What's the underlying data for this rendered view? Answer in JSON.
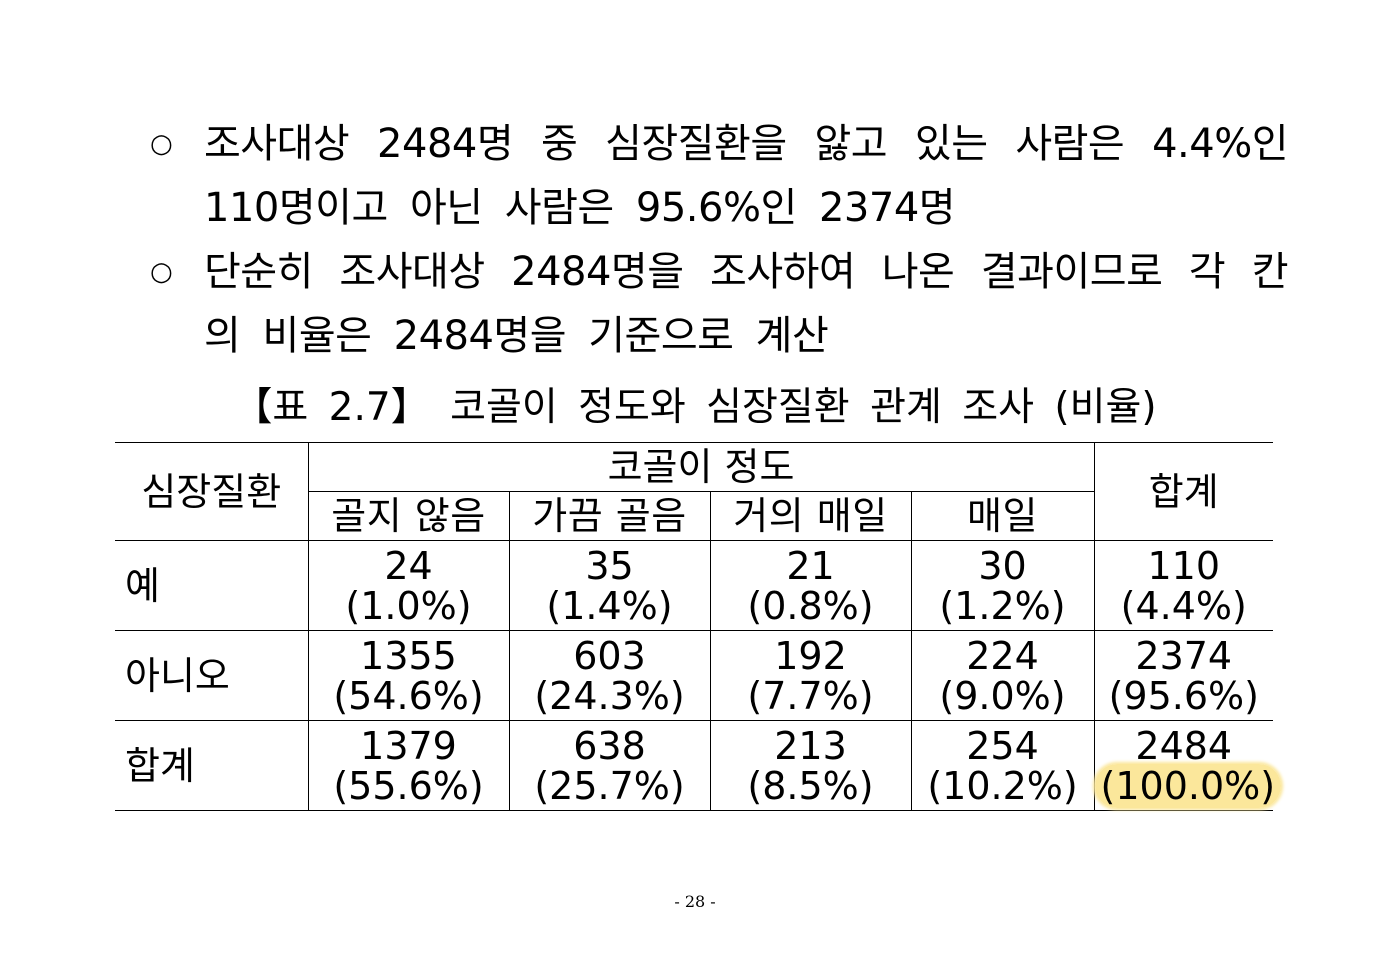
{
  "bullets": [
    {
      "mark": "○",
      "text": "조사대상 2484명 중 심장질환을 앓고 있는 사람은 4.4%인 110명이고 아닌 사람은 95.6%인 2374명"
    },
    {
      "mark": "○",
      "text": "단순히 조사대상 2484명을 조사하여 나온 결과이므로 각 칸의 비율은 2484명을 기준으로 계산"
    }
  ],
  "caption": "【표 2.7】 코골이 정도와 심장질환 관계 조사 (비율)",
  "table": {
    "row_header": "심장질환",
    "group_header": "코골이 정도",
    "total_header": "합계",
    "columns": [
      "골지 않음",
      "가끔 골음",
      "거의 매일",
      "매일"
    ],
    "rows": [
      {
        "label": "예",
        "cells": [
          {
            "count": "24",
            "pct": "(1.0%)"
          },
          {
            "count": "35",
            "pct": "(1.4%)"
          },
          {
            "count": "21",
            "pct": "(0.8%)"
          },
          {
            "count": "30",
            "pct": "(1.2%)"
          },
          {
            "count": "110",
            "pct": "(4.4%)"
          }
        ]
      },
      {
        "label": "아니오",
        "cells": [
          {
            "count": "1355",
            "pct": "(54.6%)"
          },
          {
            "count": "603",
            "pct": "(24.3%)"
          },
          {
            "count": "192",
            "pct": "(7.7%)"
          },
          {
            "count": "224",
            "pct": "(9.0%)"
          },
          {
            "count": "2374",
            "pct": "(95.6%)"
          }
        ]
      },
      {
        "label": "합계",
        "cells": [
          {
            "count": "1379",
            "pct": "(55.6%)"
          },
          {
            "count": "638",
            "pct": "(25.7%)"
          },
          {
            "count": "213",
            "pct": "(8.5%)"
          },
          {
            "count": "254",
            "pct": "(10.2%)"
          },
          {
            "count": "2484",
            "pct": "(100.0%)"
          }
        ]
      }
    ],
    "highlight_color": "#fbe79b"
  },
  "page_number": "- 28 -"
}
